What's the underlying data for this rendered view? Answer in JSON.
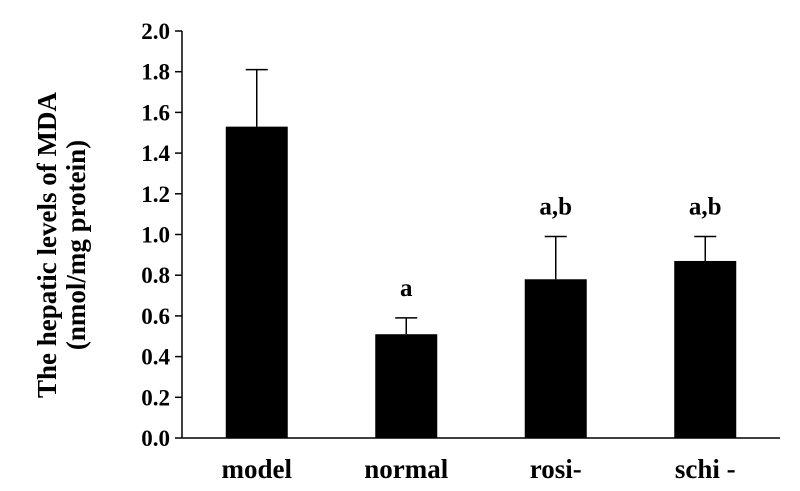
{
  "chart_data": {
    "type": "bar",
    "categories": [
      "model",
      "normal",
      "rosi-",
      "schi -"
    ],
    "values": [
      1.53,
      0.51,
      0.78,
      0.87
    ],
    "errors": [
      0.28,
      0.08,
      0.21,
      0.12
    ],
    "annotations": [
      "",
      "a",
      "a,b",
      "a,b"
    ],
    "ylabel": [
      "The hepatic levels of MDA",
      "(nmol/mg protein)"
    ],
    "ylim": [
      0,
      2.0
    ],
    "yticks": [
      "0.0",
      "0.2",
      "0.4",
      "0.6",
      "0.8",
      "1.0",
      "1.2",
      "1.4",
      "1.6",
      "1.8",
      "2.0"
    ],
    "grid": false,
    "bar_color": "#000000"
  }
}
